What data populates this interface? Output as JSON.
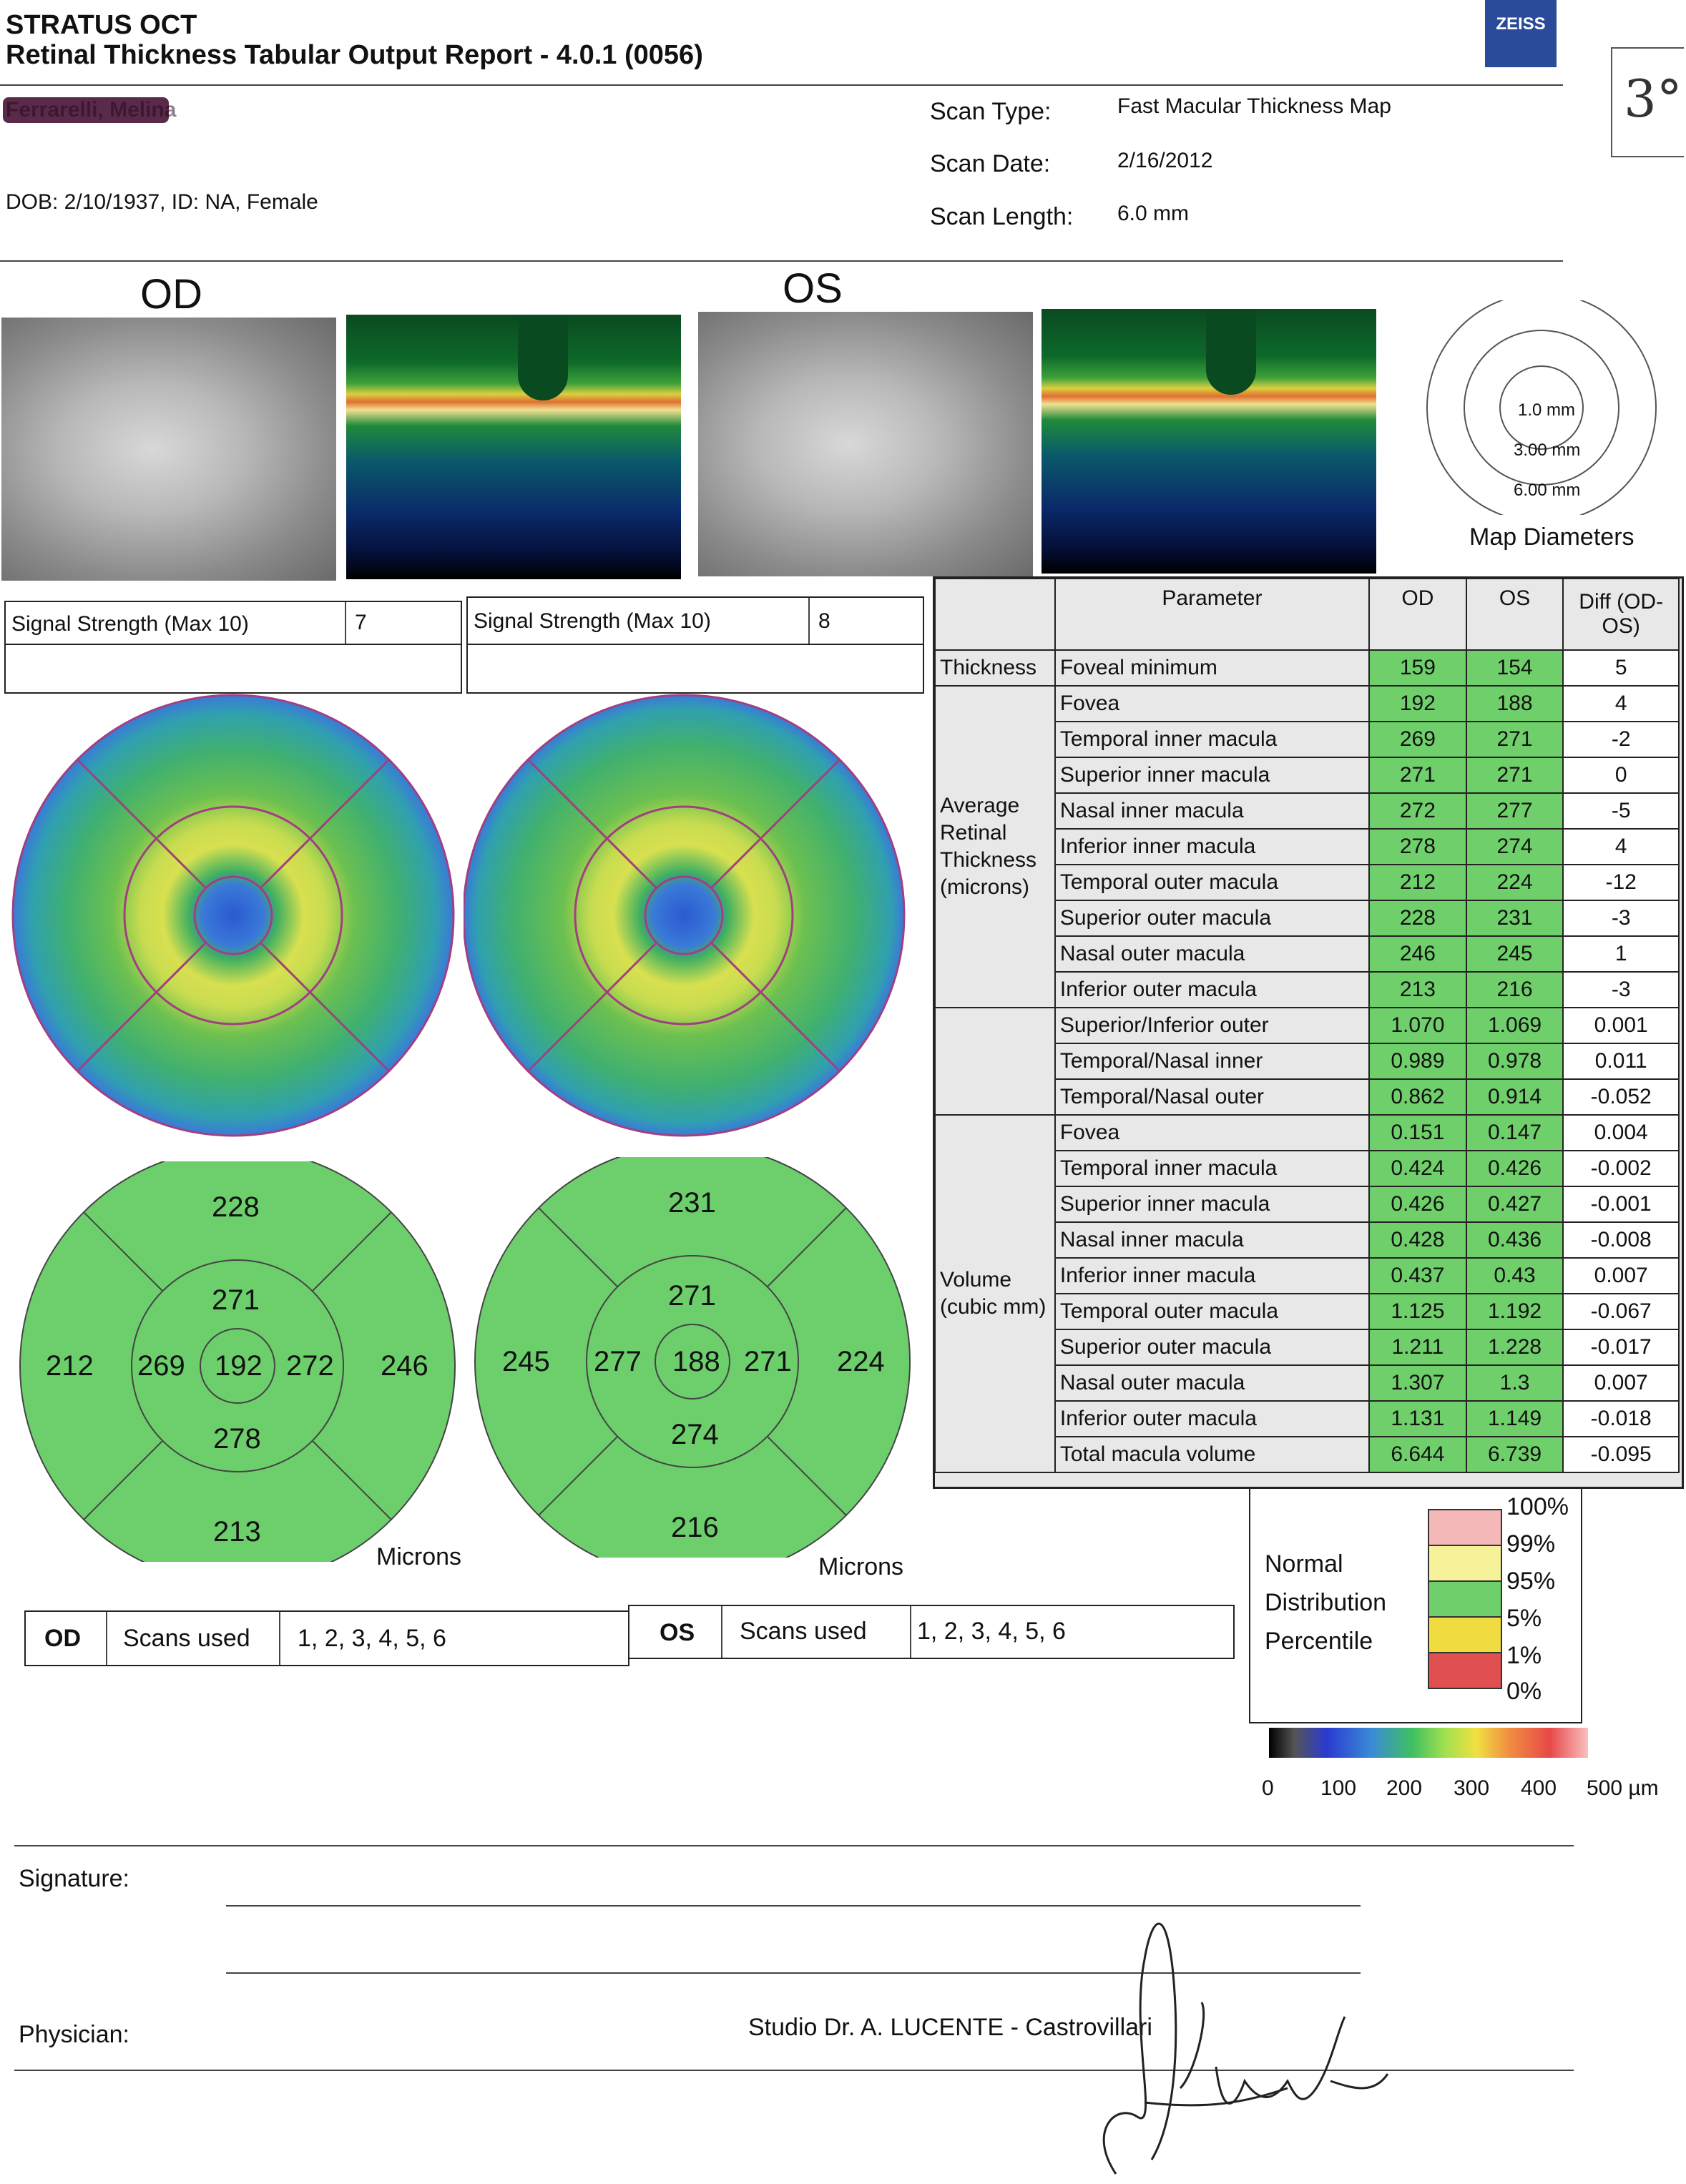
{
  "header": {
    "product": "STRATUS OCT",
    "report_title": "Retinal Thickness Tabular Output Report - 4.0.1 (0056)",
    "brand_logo": "ZEISS",
    "patient_name": "Ferrarelli, Melina",
    "patient_info": "DOB: 2/10/1937, ID: NA, Female",
    "handwritten_note": "3°"
  },
  "scan": {
    "type_label": "Scan Type:",
    "type_value": "Fast Macular Thickness Map",
    "date_label": "Scan Date:",
    "date_value": "2/16/2012",
    "length_label": "Scan Length:",
    "length_value": "6.0 mm"
  },
  "eyes": {
    "od": "OD",
    "os": "OS"
  },
  "map_diameters": {
    "labels": [
      "1.0 mm",
      "3.00 mm",
      "6.00 mm"
    ],
    "caption": "Map Diameters"
  },
  "signal": {
    "od_label": "Signal Strength (Max 10)",
    "od_value": "7",
    "os_label": "Signal Strength (Max 10)",
    "os_value": "8"
  },
  "table": {
    "headers": {
      "parameter": "Parameter",
      "od": "OD",
      "os": "OS",
      "diff": "Diff (OD-OS)"
    },
    "groups": {
      "thickness": "Thickness",
      "avg": "Average Retinal Thickness (microns)",
      "volume": "Volume (cubic mm)"
    },
    "rows": [
      {
        "param": "Foveal minimum",
        "od": "159",
        "os": "154",
        "diff": "5"
      },
      {
        "param": "Fovea",
        "od": "192",
        "os": "188",
        "diff": "4"
      },
      {
        "param": "Temporal inner macula",
        "od": "269",
        "os": "271",
        "diff": "-2"
      },
      {
        "param": "Superior inner macula",
        "od": "271",
        "os": "271",
        "diff": "0"
      },
      {
        "param": "Nasal inner macula",
        "od": "272",
        "os": "277",
        "diff": "-5"
      },
      {
        "param": "Inferior inner macula",
        "od": "278",
        "os": "274",
        "diff": "4"
      },
      {
        "param": "Temporal outer macula",
        "od": "212",
        "os": "224",
        "diff": "-12"
      },
      {
        "param": "Superior outer macula",
        "od": "228",
        "os": "231",
        "diff": "-3"
      },
      {
        "param": "Nasal outer macula",
        "od": "246",
        "os": "245",
        "diff": "1"
      },
      {
        "param": "Inferior outer macula",
        "od": "213",
        "os": "216",
        "diff": "-3"
      },
      {
        "param": "Superior/Inferior outer",
        "od": "1.070",
        "os": "1.069",
        "diff": "0.001"
      },
      {
        "param": "Temporal/Nasal inner",
        "od": "0.989",
        "os": "0.978",
        "diff": "0.011"
      },
      {
        "param": "Temporal/Nasal outer",
        "od": "0.862",
        "os": "0.914",
        "diff": "-0.052"
      },
      {
        "param": "Fovea",
        "od": "0.151",
        "os": "0.147",
        "diff": "0.004"
      },
      {
        "param": "Temporal inner macula",
        "od": "0.424",
        "os": "0.426",
        "diff": "-0.002"
      },
      {
        "param": "Superior inner macula",
        "od": "0.426",
        "os": "0.427",
        "diff": "-0.001"
      },
      {
        "param": "Nasal inner macula",
        "od": "0.428",
        "os": "0.436",
        "diff": "-0.008"
      },
      {
        "param": "Inferior inner macula",
        "od": "0.437",
        "os": "0.43",
        "diff": "0.007"
      },
      {
        "param": "Temporal outer macula",
        "od": "1.125",
        "os": "1.192",
        "diff": "-0.067"
      },
      {
        "param": "Superior outer macula",
        "od": "1.211",
        "os": "1.228",
        "diff": "-0.017"
      },
      {
        "param": "Nasal outer macula",
        "od": "1.307",
        "os": "1.3",
        "diff": "0.007"
      },
      {
        "param": "Inferior outer macula",
        "od": "1.131",
        "os": "1.149",
        "diff": "-0.018"
      },
      {
        "param": "Total macula volume",
        "od": "6.644",
        "os": "6.739",
        "diff": "-0.095"
      }
    ]
  },
  "sector_od": {
    "center": "192",
    "inner_top": "271",
    "inner_left": "269",
    "inner_right": "272",
    "inner_bottom": "278",
    "outer_top": "228",
    "outer_left": "212",
    "outer_right": "246",
    "outer_bottom": "213",
    "unit": "Microns"
  },
  "sector_os": {
    "center": "188",
    "inner_top": "271",
    "inner_left": "277",
    "inner_right": "271",
    "inner_bottom": "274",
    "outer_top": "231",
    "outer_left": "245",
    "outer_right": "224",
    "outer_bottom": "216",
    "unit": "Microns"
  },
  "scans_used": {
    "od_eye": "OD",
    "os_eye": "OS",
    "label": "Scans used",
    "od_value": "1, 2, 3, 4, 5, 6",
    "os_value": "1, 2, 3, 4, 5, 6"
  },
  "legend": {
    "title_lines": [
      "Normal",
      "Distribution",
      "Percentile"
    ],
    "ticks": [
      "100%",
      "99%",
      "95%",
      "5%",
      "1%",
      "0%"
    ],
    "colors": [
      "#f4b8b8",
      "#f6f29a",
      "#6fcf6a",
      "#f0dc40",
      "#e05050"
    ]
  },
  "colorbar": {
    "ticks": [
      "0",
      "100",
      "200",
      "300",
      "400",
      "500 µm"
    ]
  },
  "footer": {
    "signature_label": "Signature:",
    "physician_label": "Physician:",
    "studio": "Studio Dr. A. LUCENTE - Castrovillari"
  }
}
